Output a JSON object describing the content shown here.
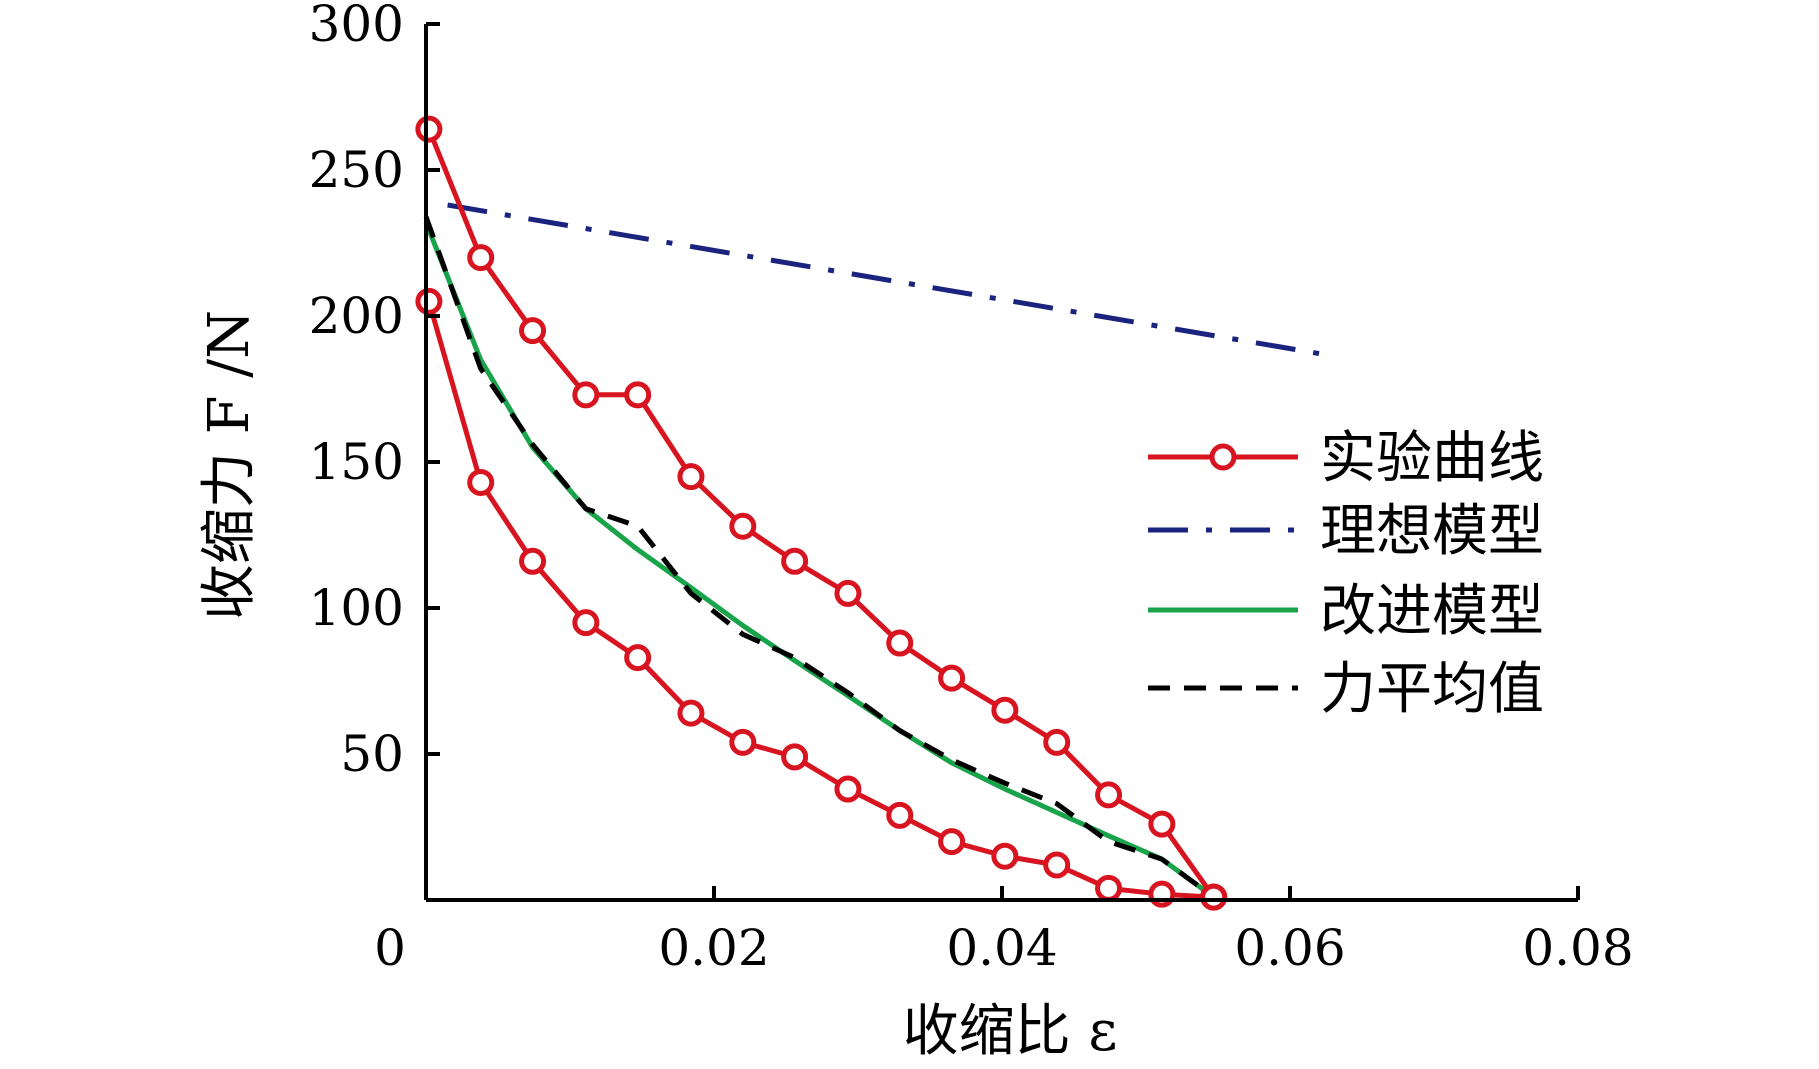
{
  "chart_data": {
    "type": "line",
    "title": "",
    "xlabel": "收缩比 ε",
    "ylabel": "收缩力 F /N",
    "xlim": [
      0,
      0.08
    ],
    "ylim": [
      0,
      300
    ],
    "x_ticks": [
      0.02,
      0.04,
      0.06,
      0.08
    ],
    "x_tick_labels": [
      "0.02",
      "0.04",
      "0.06",
      "0.08"
    ],
    "y_ticks": [
      50,
      100,
      150,
      200,
      250,
      300
    ],
    "y_tick_labels": [
      "50",
      "100",
      "150",
      "200",
      "250",
      "300"
    ],
    "origin_label": "0",
    "grid": false,
    "legend_position": "right",
    "series": [
      {
        "name": "实验曲线",
        "style": "solid-circle-markers",
        "color": "#d7141f",
        "segments": [
          {
            "x": [
              0.0002,
              0.0038,
              0.0074,
              0.0111,
              0.0147,
              0.0184,
              0.022,
              0.0256,
              0.0293,
              0.0329,
              0.0365,
              0.0402,
              0.0438,
              0.0474,
              0.0511,
              0.0547
            ],
            "y": [
              264,
              220,
              195,
              173,
              173,
              145,
              128,
              116,
              105,
              88,
              76,
              65,
              54,
              36,
              26,
              1
            ]
          },
          {
            "x": [
              0.0002,
              0.0038,
              0.0074,
              0.0111,
              0.0147,
              0.0184,
              0.022,
              0.0256,
              0.0293,
              0.0329,
              0.0365,
              0.0402,
              0.0438,
              0.0474,
              0.0511,
              0.0547
            ],
            "y": [
              205,
              143,
              116,
              95,
              83,
              64,
              54,
              49,
              38,
              29,
              20,
              15,
              12,
              4,
              2,
              1
            ]
          }
        ]
      },
      {
        "name": "理想模型",
        "style": "dash-dot",
        "color": "#1a237e",
        "segments": [
          {
            "x": [
              0.0015,
              0.0622
            ],
            "y": [
              238,
              187
            ]
          }
        ]
      },
      {
        "name": "改进模型",
        "style": "solid",
        "color": "#19a34a",
        "segments": [
          {
            "x": [
              0,
              0.0038,
              0.0074,
              0.0111,
              0.0147,
              0.0184,
              0.022,
              0.0256,
              0.0293,
              0.0329,
              0.0365,
              0.0402,
              0.0438,
              0.0474,
              0.0511,
              0.0547
            ],
            "y": [
              232,
              185,
              155,
              134,
              120,
              107,
              94,
              82,
              70,
              58,
              47,
              38,
              30,
              22,
              14,
              1
            ]
          }
        ]
      },
      {
        "name": "力平均值",
        "style": "dashed",
        "color": "#000000",
        "segments": [
          {
            "x": [
              0,
              0.0038,
              0.0074,
              0.0111,
              0.0147,
              0.0184,
              0.022,
              0.0256,
              0.0293,
              0.0329,
              0.0365,
              0.0402,
              0.0438,
              0.0474,
              0.0511,
              0.0547
            ],
            "y": [
              234,
              182,
              156,
              134,
              128,
              105,
              91,
              83,
              71,
              58,
              48,
              40,
              33,
              20,
              14,
              1
            ]
          }
        ]
      }
    ]
  }
}
